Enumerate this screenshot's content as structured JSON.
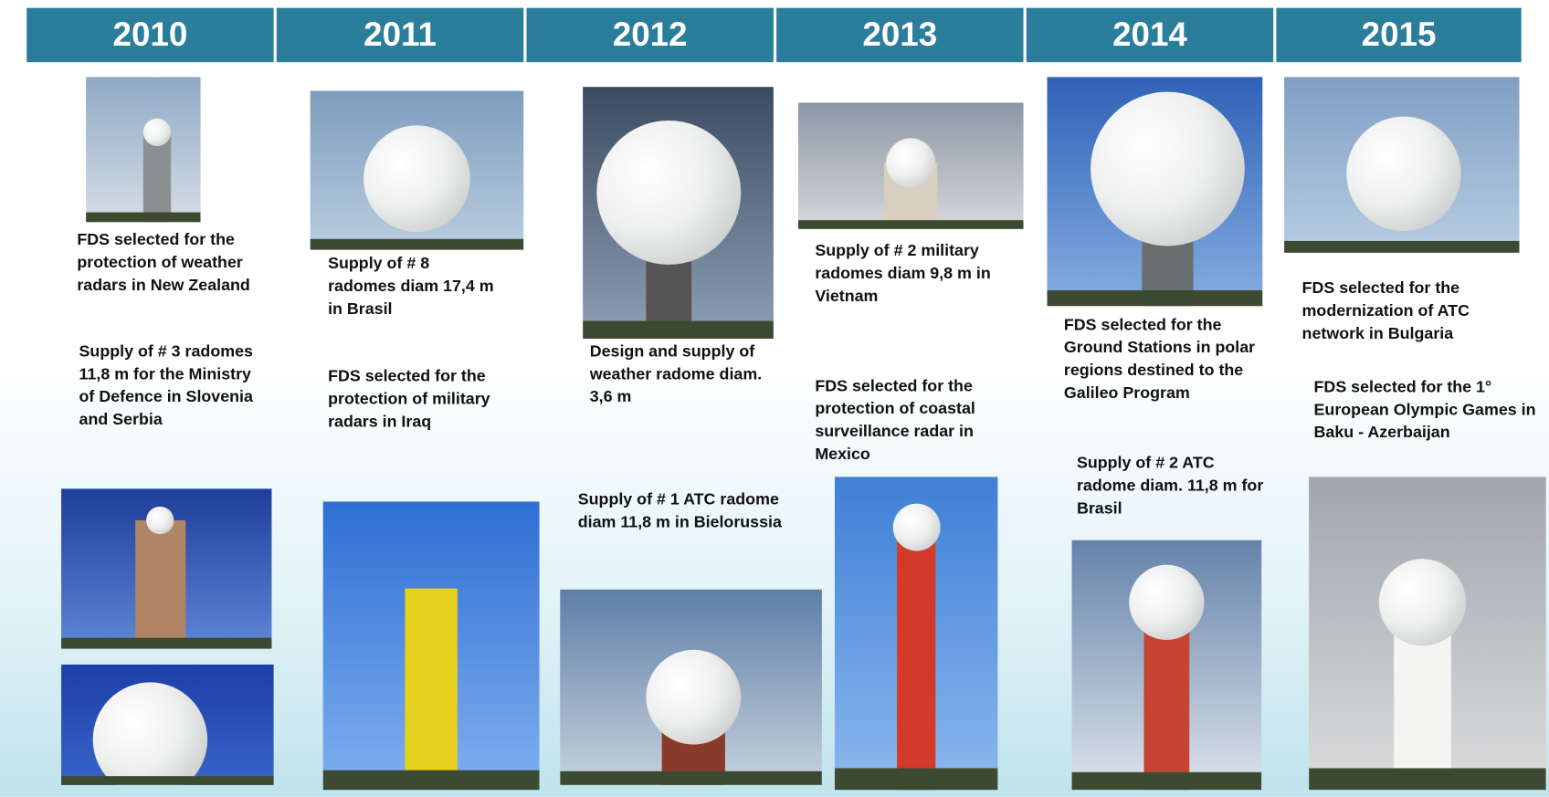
{
  "columns": [
    {
      "year": "2010",
      "notes": [
        "FDS selected for the protection of weather radars in New Zealand",
        "Supply of # 3 radomes 11,8 m for the Ministry of Defence in Slovenia and Serbia"
      ]
    },
    {
      "year": "2011",
      "notes": [
        "Supply of # 8 radomes diam 17,4 m in Brasil",
        "FDS selected for the protection of military radars in Iraq"
      ]
    },
    {
      "year": "2012",
      "notes": [
        "Design and supply of weather radome diam. 3,6 m",
        "Supply of # 1 ATC radome diam 11,8 m in Bielorussia"
      ]
    },
    {
      "year": "2013",
      "notes": [
        "Supply of # 2 military radomes diam 9,8 m in Vietnam",
        "FDS selected for the protection of coastal surveillance radar in Mexico"
      ]
    },
    {
      "year": "2014",
      "notes": [
        "FDS selected for the Ground Stations in polar regions destined to the Galileo Program",
        "Supply of # 2 ATC radome diam. 11,8 m for Brasil"
      ]
    },
    {
      "year": "2015",
      "notes": [
        "FDS selected for the modernization of ATC network in Bulgaria",
        "FDS selected for the 1° European Olympic Games in Baku - Azerbaijan"
      ]
    }
  ]
}
